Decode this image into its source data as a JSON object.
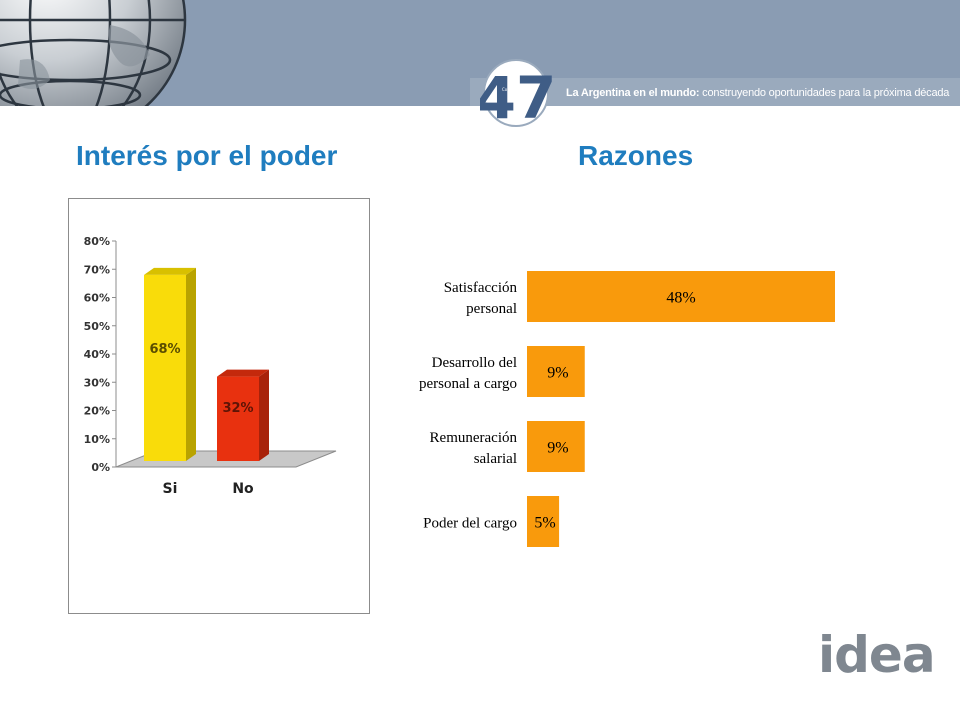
{
  "header": {
    "logo_number": "47",
    "logo_small_text": "Coloquio Anual",
    "tagline_bold": "La Argentina en el mundo:",
    "tagline_rest": " construyendo oportunidades para la próxima década"
  },
  "left_heading": "Interés por el poder",
  "right_heading": "Razones",
  "footer_logo": "idea",
  "colors": {
    "banner": "#8a9cb3",
    "heading": "#1f7dbf",
    "bar_si": "#f9dc0a",
    "bar_no": "#e8310f",
    "bar_reason": "#f99a0c"
  },
  "chart_data": [
    {
      "type": "bar",
      "style": "3d-column",
      "categories": [
        "Si",
        "No"
      ],
      "values": [
        68,
        32
      ],
      "data_labels": [
        "68%",
        "32%"
      ],
      "ylim": [
        0,
        80
      ],
      "ytick_values": [
        0,
        10,
        20,
        30,
        40,
        50,
        60,
        70,
        80
      ],
      "ytick_labels": [
        "0%",
        "10%",
        "20%",
        "30%",
        "40%",
        "50%",
        "60%",
        "70%",
        "80%"
      ],
      "grid": false,
      "legend": "none"
    },
    {
      "type": "bar",
      "orientation": "horizontal",
      "categories": [
        [
          "Satisfacción",
          "personal"
        ],
        [
          "Desarrollo del",
          "personal a cargo"
        ],
        [
          "Remuneración",
          "salarial"
        ],
        [
          "Poder del cargo"
        ]
      ],
      "values": [
        48,
        9,
        9,
        5
      ],
      "data_labels": [
        "48%",
        "9%",
        "9%",
        "5%"
      ],
      "xlim": [
        0,
        48
      ],
      "grid": false,
      "legend": "none"
    }
  ]
}
